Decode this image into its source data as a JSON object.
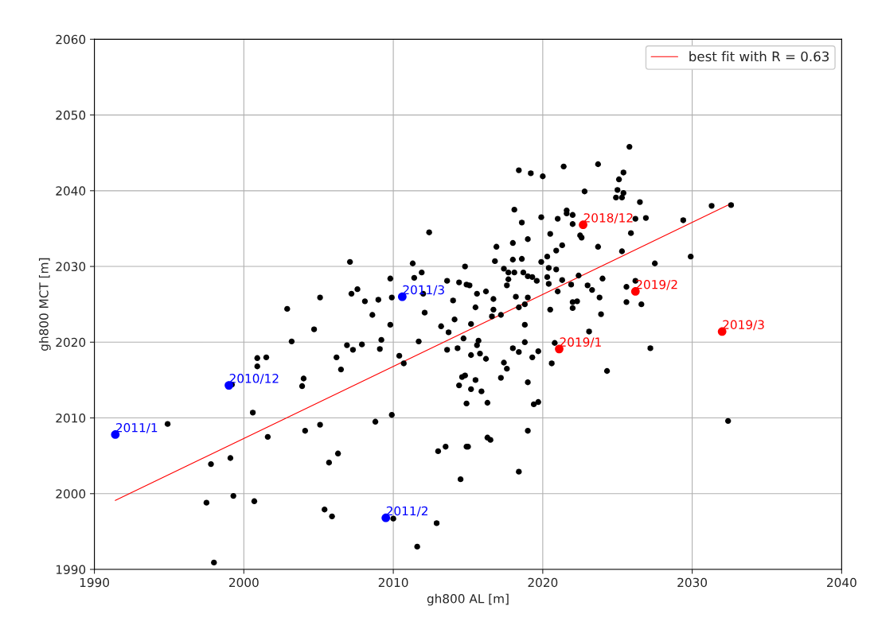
{
  "chart_data": {
    "type": "scatter",
    "xlabel": "gh800 AL [m]",
    "ylabel": "gh800 MCT [m]",
    "xlim": [
      1990,
      2040
    ],
    "xticks": [
      1990,
      2000,
      2010,
      2020,
      2030,
      2040
    ],
    "ylim": [
      1990,
      2060
    ],
    "yticks": [
      1990,
      2000,
      2010,
      2020,
      2030,
      2040,
      2050,
      2060
    ],
    "grid": true,
    "legend": "top right",
    "marker": "circle",
    "series": [
      {
        "color": "#000000",
        "x": [
          1994.9,
          1997.5,
          1997.8,
          1998.0,
          1999.1,
          1999.3,
          1999.2,
          2000.6,
          2000.7,
          2000.9,
          2001.5,
          2000.9,
          2001.6,
          2002.9,
          2003.2,
          2003.9,
          2004.0,
          2004.1,
          2004.7,
          2005.1,
          2005.1,
          2005.4,
          2005.7,
          2005.9,
          2006.2,
          2006.3,
          2006.5,
          2006.9,
          2007.1,
          2007.2,
          2007.3,
          2007.6,
          2007.9,
          2008.1,
          2008.6,
          2008.8,
          2009.0,
          2009.1,
          2009.2,
          2009.8,
          2009.8,
          2009.9,
          2009.9,
          2010.0,
          2010.4,
          2010.7,
          2011.3,
          2011.4,
          2011.6,
          2011.7,
          2011.9,
          2012.0,
          2012.1,
          2012.4,
          2012.9,
          2013.0,
          2013.2,
          2013.5,
          2013.6,
          2013.6,
          2013.7,
          2014.0,
          2014.1,
          2014.3,
          2014.4,
          2014.4,
          2014.5,
          2014.6,
          2014.7,
          2014.8,
          2014.8,
          2014.9,
          2014.9,
          2014.9,
          2015.0,
          2015.1,
          2015.2,
          2015.2,
          2015.2,
          2015.5,
          2015.5,
          2015.6,
          2015.6,
          2015.7,
          2015.8,
          2015.9,
          2016.2,
          2016.2,
          2016.3,
          2016.3,
          2016.5,
          2016.6,
          2016.7,
          2016.7,
          2016.8,
          2016.9,
          2017.2,
          2017.2,
          2017.4,
          2017.4,
          2017.6,
          2017.6,
          2017.7,
          2017.7,
          2018.0,
          2018.0,
          2018.0,
          2018.1,
          2018.1,
          2018.2,
          2018.4,
          2018.4,
          2018.4,
          2018.4,
          2018.6,
          2018.6,
          2018.7,
          2018.8,
          2018.8,
          2018.8,
          2019.0,
          2019.0,
          2019.0,
          2019.0,
          2019.0,
          2019.2,
          2019.3,
          2019.3,
          2019.4,
          2019.6,
          2019.7,
          2019.7,
          2019.9,
          2019.9,
          2020.0,
          2020.3,
          2020.3,
          2020.4,
          2020.4,
          2020.5,
          2020.5,
          2020.6,
          2020.8,
          2020.9,
          2020.9,
          2021.0,
          2021.0,
          2021.3,
          2021.3,
          2021.4,
          2021.6,
          2021.6,
          2021.9,
          2022.0,
          2022.0,
          2022.0,
          2022.0,
          2022.3,
          2022.4,
          2022.5,
          2022.6,
          2022.8,
          2023.0,
          2023.1,
          2023.3,
          2023.7,
          2023.7,
          2023.8,
          2023.9,
          2024.0,
          2024.3,
          2024.9,
          2025.0,
          2025.1,
          2025.3,
          2025.3,
          2025.4,
          2025.4,
          2025.6,
          2025.6,
          2025.8,
          2025.9,
          2026.2,
          2026.2,
          2026.5,
          2026.6,
          2026.9,
          2027.2,
          2027.5,
          2029.4,
          2029.9,
          2031.3,
          2032.4,
          2032.6
        ],
        "values": [
          2009.2,
          1998.8,
          2003.9,
          1990.9,
          2004.7,
          1999.7,
          2014.4,
          2010.7,
          1999.0,
          2017.9,
          2018.0,
          2016.8,
          2007.5,
          2024.4,
          2020.1,
          2014.2,
          2015.2,
          2008.3,
          2021.7,
          2025.9,
          2009.1,
          1997.9,
          2004.1,
          1997.0,
          2018.0,
          2005.3,
          2016.4,
          2019.6,
          2030.6,
          2026.4,
          2019.0,
          2027.0,
          2019.7,
          2025.4,
          2023.6,
          2009.5,
          2025.6,
          2019.1,
          2020.3,
          2028.4,
          2022.3,
          2025.9,
          2010.4,
          1996.7,
          2018.2,
          2017.2,
          2030.4,
          2028.5,
          1993.0,
          2020.1,
          2029.2,
          2026.4,
          2023.9,
          2034.5,
          1996.1,
          2005.6,
          2022.1,
          2006.2,
          2028.1,
          2019.0,
          2021.3,
          2025.5,
          2023.0,
          2019.2,
          2027.9,
          2014.3,
          2001.9,
          2015.4,
          2020.5,
          2030.0,
          2015.6,
          2011.9,
          2006.2,
          2027.6,
          2006.2,
          2027.5,
          2022.4,
          2018.3,
          2013.8,
          2024.6,
          2015.0,
          2026.4,
          2019.6,
          2020.2,
          2018.5,
          2013.5,
          2026.7,
          2017.8,
          2012.0,
          2007.4,
          2007.1,
          2023.4,
          2025.7,
          2024.3,
          2030.7,
          2032.6,
          2023.6,
          2015.3,
          2029.7,
          2017.3,
          2027.5,
          2016.5,
          2029.2,
          2028.3,
          2033.1,
          2030.9,
          2019.2,
          2037.5,
          2029.2,
          2026.0,
          2042.7,
          2024.6,
          2018.7,
          2002.9,
          2035.8,
          2031.0,
          2029.2,
          2025.0,
          2022.3,
          2020.0,
          2033.6,
          2028.7,
          2025.9,
          2014.7,
          2008.3,
          2042.3,
          2028.6,
          2018.0,
          2011.8,
          2028.1,
          2018.8,
          2012.1,
          2036.5,
          2030.6,
          2041.9,
          2031.3,
          2028.6,
          2029.8,
          2027.7,
          2034.3,
          2024.3,
          2017.2,
          2019.9,
          2032.1,
          2029.6,
          2036.3,
          2026.7,
          2032.8,
          2028.2,
          2043.2,
          2037.4,
          2037.0,
          2027.6,
          2036.8,
          2035.6,
          2025.3,
          2024.5,
          2025.4,
          2028.8,
          2034.1,
          2033.8,
          2039.9,
          2027.5,
          2021.4,
          2026.9,
          2043.5,
          2032.6,
          2025.9,
          2023.7,
          2028.4,
          2016.2,
          2039.1,
          2040.1,
          2041.5,
          2039.1,
          2032.0,
          2042.4,
          2039.7,
          2027.3,
          2025.3,
          2045.8,
          2034.4,
          2028.1,
          2036.3,
          2038.5,
          2025.0,
          2036.4,
          2019.2,
          2030.4,
          2036.1,
          2031.3,
          2038.0,
          2009.6,
          2038.1
        ]
      },
      {
        "color": "#0000ff",
        "x": [
          1991.4,
          1999.0,
          2009.5,
          2010.6
        ],
        "values": [
          2007.8,
          2014.3,
          1996.8,
          2026.0
        ]
      },
      {
        "color": "#ff0000",
        "x": [
          2022.7,
          2021.1,
          2026.2,
          2032.0
        ],
        "values": [
          2035.5,
          2019.1,
          2026.7,
          2021.4
        ]
      },
      {
        "type": "line",
        "name": "best fit with R = 0.63",
        "color": "#ff0000",
        "marker": "none",
        "x": [
          1991.4,
          2032.6
        ],
        "values": [
          1999.1,
          2038.3
        ]
      }
    ],
    "annotations": [
      {
        "text": "2011/1",
        "x": 1991.4,
        "y": 2007.8
      },
      {
        "text": "2010/12",
        "x": 1999.0,
        "y": 2014.3
      },
      {
        "text": "2011/2",
        "x": 2009.5,
        "y": 1996.8
      },
      {
        "text": "2011/3",
        "x": 2010.6,
        "y": 2026.0
      },
      {
        "text": "2018/12",
        "x": 2022.7,
        "y": 2035.5
      },
      {
        "text": "2019/1",
        "x": 2021.1,
        "y": 2019.1
      },
      {
        "text": "2019/2",
        "x": 2026.2,
        "y": 2026.7
      },
      {
        "text": "2019/3",
        "x": 2032.0,
        "y": 2021.4
      }
    ]
  }
}
